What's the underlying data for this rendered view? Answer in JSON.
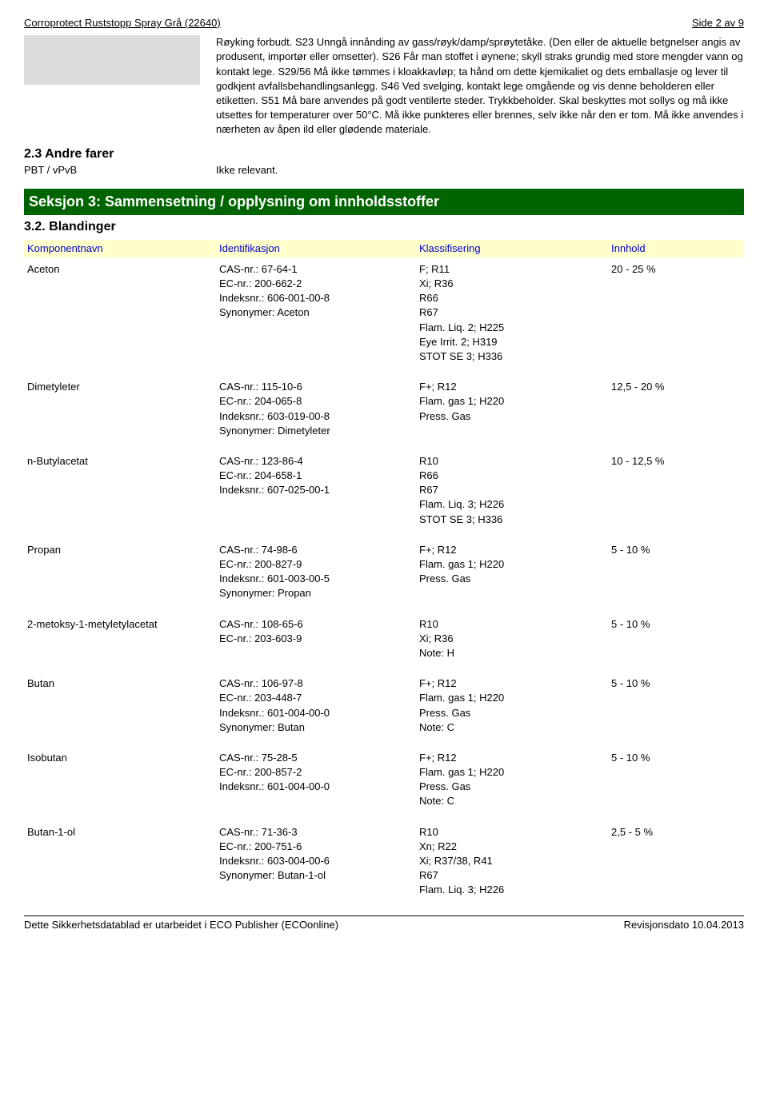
{
  "header": {
    "left": "Corroprotect Ruststopp Spray Grå (22640)",
    "right": "Side 2 av 9"
  },
  "bodyText": "Røyking forbudt. S23 Unngå innånding av gass/røyk/damp/sprøytetåke. (Den eller de aktuelle betgnelser angis av produsent, importør eller omsetter). S26 Får man stoffet i øynene; skyll straks grundig med store mengder vann og kontakt lege. S29/56 Må ikke tømmes i kloakkavløp; ta hånd om dette kjemikaliet og dets emballasje og lever til godkjent avfallsbehandlingsanlegg. S46 Ved svelging, kontakt lege omgående og vis denne beholderen eller etiketten. S51 Må bare anvendes på godt ventilerte steder. Trykkbeholder. Skal beskyttes mot sollys og må ikke utsettes for temperaturer over 50°C. Må ikke punkteres eller brennes, selv ikke når den er tom. Må ikke anvendes i nærheten av åpen ild eller glødende materiale.",
  "section23": {
    "title": "2.3 Andre farer",
    "pbtLabel": "PBT / vPvB",
    "pbtValue": "Ikke relevant."
  },
  "section3": {
    "header": "Seksjon 3: Sammensetning / opplysning om innholdsstoffer",
    "subsection": "3.2. Blandinger",
    "columns": {
      "name": "Komponentnavn",
      "id": "Identifikasjon",
      "class": "Klassifisering",
      "content": "Innhold"
    }
  },
  "components": [
    {
      "name": "Aceton",
      "id": "CAS-nr.: 67-64-1\nEC-nr.: 200-662-2\nIndeksnr.: 606-001-00-8\nSynonymer: Aceton",
      "class": "F; R11\nXi; R36\nR66\nR67\nFlam. Liq. 2; H225\nEye Irrit. 2; H319\nSTOT SE 3; H336",
      "content": "20 - 25 %"
    },
    {
      "name": "Dimetyleter",
      "id": "CAS-nr.: 115-10-6\nEC-nr.: 204-065-8\nIndeksnr.: 603-019-00-8\nSynonymer: Dimetyleter",
      "class": "F+; R12\nFlam. gas 1; H220\nPress. Gas",
      "content": "12,5 - 20 %"
    },
    {
      "name": "n-Butylacetat",
      "id": "CAS-nr.: 123-86-4\nEC-nr.: 204-658-1\nIndeksnr.: 607-025-00-1",
      "class": "R10\nR66\nR67\nFlam. Liq. 3; H226\nSTOT SE 3; H336",
      "content": "10 - 12,5 %"
    },
    {
      "name": "Propan",
      "id": "CAS-nr.: 74-98-6\nEC-nr.: 200-827-9\nIndeksnr.: 601-003-00-5\nSynonymer: Propan",
      "class": "F+; R12\nFlam. gas 1; H220\nPress. Gas",
      "content": "5 - 10 %"
    },
    {
      "name": "2-metoksy-1-metyletylacetat",
      "id": "CAS-nr.: 108-65-6\nEC-nr.: 203-603-9",
      "class": "R10\nXi; R36\nNote: H",
      "content": "5 - 10 %"
    },
    {
      "name": "Butan",
      "id": "CAS-nr.: 106-97-8\nEC-nr.: 203-448-7\nIndeksnr.: 601-004-00-0\nSynonymer: Butan",
      "class": "F+; R12\nFlam. gas 1; H220\nPress. Gas\nNote: C",
      "content": "5 - 10 %"
    },
    {
      "name": "Isobutan",
      "id": "CAS-nr.: 75-28-5\nEC-nr.: 200-857-2\nIndeksnr.: 601-004-00-0",
      "class": "F+; R12\nFlam. gas 1; H220\nPress. Gas\nNote: C",
      "content": "5 - 10 %"
    },
    {
      "name": "Butan-1-ol",
      "id": "CAS-nr.: 71-36-3\nEC-nr.: 200-751-6\nIndeksnr.: 603-004-00-6\nSynonymer: Butan-1-ol",
      "class": "R10\nXn; R22\nXi; R37/38, R41\nR67\nFlam. Liq. 3; H226",
      "content": "2,5 - 5 %"
    }
  ],
  "footer": {
    "left": "Dette Sikkerhetsdatablad er utarbeidet i ECO Publisher (ECOonline)",
    "right": "Revisjonsdato 10.04.2013"
  }
}
